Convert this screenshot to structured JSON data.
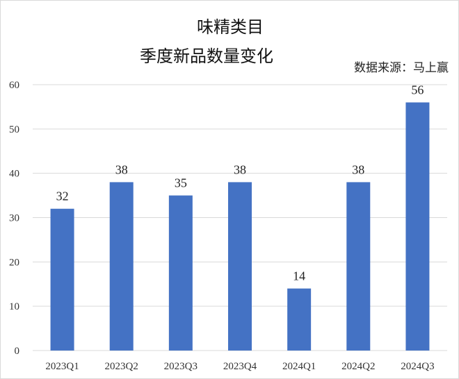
{
  "chart_data": {
    "type": "bar",
    "title_line1": "味精类目",
    "title_line2": "季度新品数量变化",
    "source": "数据来源：马上赢",
    "categories": [
      "2023Q1",
      "2023Q2",
      "2023Q3",
      "2023Q4",
      "2024Q1",
      "2024Q2",
      "2024Q3"
    ],
    "values": [
      32,
      38,
      35,
      38,
      14,
      38,
      56
    ],
    "ylim": [
      0,
      60
    ],
    "yticks": [
      0,
      10,
      20,
      30,
      40,
      50,
      60
    ],
    "grid": true,
    "bar_color": "#4472C4",
    "xlabel": "",
    "ylabel": ""
  }
}
